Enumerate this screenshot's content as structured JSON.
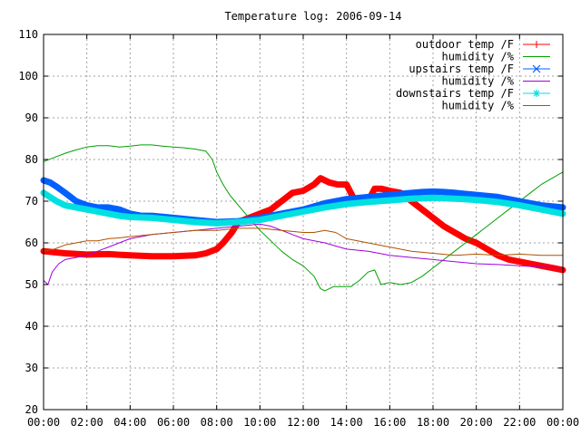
{
  "chart_data": {
    "type": "line",
    "title": "Temperature log: 2006-09-14",
    "xlabel": "",
    "ylabel": "",
    "xlim": [
      0,
      24
    ],
    "ylim": [
      20,
      110
    ],
    "x_tick_labels": [
      "00:00",
      "02:00",
      "04:00",
      "06:00",
      "08:00",
      "10:00",
      "12:00",
      "14:00",
      "16:00",
      "18:00",
      "20:00",
      "22:00",
      "00:00"
    ],
    "x_tick_values": [
      0,
      2,
      4,
      6,
      8,
      10,
      12,
      14,
      16,
      18,
      20,
      22,
      24
    ],
    "y_ticks": [
      20,
      30,
      40,
      50,
      60,
      70,
      80,
      90,
      100,
      110
    ],
    "grid": true,
    "legend_position": "top-right",
    "series": [
      {
        "name": "outdoor temp /F",
        "color": "#ff0000",
        "marker": "plus",
        "thick": true,
        "x": [
          0,
          1,
          2,
          3,
          4,
          5,
          6,
          7,
          7.5,
          8,
          8.3,
          8.7,
          9,
          9.5,
          10,
          10.5,
          11,
          11.5,
          12,
          12.5,
          12.8,
          13.2,
          13.6,
          14,
          14.3,
          14.6,
          15,
          15.3,
          15.6,
          16,
          16.5,
          17,
          17.5,
          18,
          18.5,
          19,
          19.5,
          20,
          20.5,
          21,
          21.5,
          22,
          22.5,
          23,
          23.5,
          24
        ],
        "y": [
          58,
          57.5,
          57.2,
          57.3,
          57,
          56.8,
          56.8,
          57,
          57.5,
          58.5,
          60,
          62.5,
          65,
          66,
          67,
          68,
          70,
          72,
          72.5,
          74,
          75.5,
          74.5,
          74,
          74,
          71,
          70,
          70,
          73,
          73,
          72.5,
          72,
          70,
          68,
          66,
          64,
          62.5,
          61,
          60,
          58.5,
          57,
          56,
          55.5,
          55,
          54.5,
          54,
          53.5
        ]
      },
      {
        "name": "humidity /%",
        "color": "#00a000",
        "marker": "none",
        "thick": false,
        "x": [
          0,
          0.5,
          1,
          1.5,
          2,
          2.5,
          3,
          3.5,
          4,
          4.5,
          5,
          5.5,
          6,
          6.5,
          7,
          7.5,
          7.8,
          8,
          8.3,
          8.6,
          9,
          9.5,
          10,
          10.5,
          11,
          11.5,
          12,
          12.5,
          12.8,
          13,
          13.4,
          13.8,
          14.2,
          14.6,
          15,
          15.3,
          15.6,
          16,
          16.5,
          17,
          17.5,
          18,
          18.5,
          19,
          19.5,
          20,
          20.5,
          21,
          21.5,
          22,
          22.5,
          23,
          23.5,
          24
        ],
        "y": [
          79.5,
          80.5,
          81.5,
          82.3,
          83,
          83.3,
          83.3,
          83,
          83.2,
          83.5,
          83.5,
          83.2,
          83,
          82.8,
          82.5,
          82,
          80,
          77,
          74,
          71.5,
          69,
          66,
          63,
          60.5,
          58,
          56,
          54.5,
          52,
          49,
          48.5,
          49.5,
          49.5,
          49.5,
          51,
          53,
          53.5,
          50,
          50.5,
          50,
          50.5,
          52,
          54,
          56,
          58,
          60,
          62,
          64,
          66,
          68,
          70,
          72,
          74,
          75.5,
          77
        ]
      },
      {
        "name": "upstairs temp /F",
        "color": "#0060ff",
        "marker": "cross",
        "thick": true,
        "x": [
          0,
          0.3,
          0.6,
          1,
          1.5,
          2,
          2.5,
          3,
          3.5,
          4,
          4.5,
          5,
          6,
          7,
          8,
          9,
          10,
          11,
          12,
          13,
          14,
          15,
          16,
          17,
          17.5,
          18,
          18.5,
          19,
          20,
          21,
          22,
          23,
          24
        ],
        "y": [
          75,
          74.5,
          73.5,
          72,
          70,
          69,
          68.5,
          68.5,
          68,
          67,
          66.5,
          66.5,
          66,
          65.5,
          65,
          65.2,
          66,
          67,
          68,
          69.5,
          70.5,
          71,
          71.5,
          72,
          72.2,
          72.3,
          72.2,
          72,
          71.5,
          71,
          70,
          69,
          68.5
        ]
      },
      {
        "name": "humidity /%",
        "color": "#a000e0",
        "marker": "none",
        "thick": false,
        "x": [
          0,
          0.2,
          0.4,
          0.7,
          1,
          1.5,
          2,
          2.5,
          3,
          3.5,
          4,
          4.5,
          5,
          6,
          7,
          8,
          9,
          10,
          10.5,
          11,
          11.5,
          12,
          13,
          14,
          15,
          16,
          17,
          18,
          19,
          20,
          21,
          22,
          23,
          24
        ],
        "y": [
          51,
          50,
          53,
          55,
          56,
          56.5,
          57,
          58,
          59,
          60,
          61,
          61.5,
          62,
          62.5,
          63,
          63.5,
          64,
          64.5,
          64,
          63,
          62,
          61,
          60,
          58.5,
          58,
          57,
          56.5,
          56,
          55.5,
          55,
          54.8,
          54.5,
          54.2,
          54
        ]
      },
      {
        "name": "downstairs temp /F",
        "color": "#00e0e0",
        "marker": "star",
        "thick": true,
        "x": [
          0,
          0.3,
          0.6,
          1,
          1.5,
          2,
          2.5,
          3,
          3.5,
          4,
          5,
          6,
          7,
          8,
          9,
          10,
          11,
          12,
          13,
          14,
          15,
          16,
          17,
          18,
          19,
          20,
          21,
          22,
          23,
          24
        ],
        "y": [
          72,
          71,
          70,
          69,
          68.5,
          68,
          67.5,
          67,
          66.5,
          66.2,
          66,
          65.5,
          65,
          64.7,
          65,
          65.5,
          66.5,
          67.5,
          68.5,
          69.3,
          69.8,
          70.2,
          70.6,
          70.8,
          70.6,
          70.3,
          69.8,
          69,
          68,
          67
        ]
      },
      {
        "name": "humidity /%",
        "color": "#b05000",
        "marker": "none",
        "thick": false,
        "x": [
          0,
          0.5,
          1,
          1.5,
          2,
          2.5,
          3,
          3.5,
          4,
          5,
          6,
          7,
          8,
          9,
          10,
          11,
          12,
          12.5,
          13,
          13.5,
          14,
          15,
          16,
          17,
          18,
          19,
          20,
          21,
          22,
          23,
          24
        ],
        "y": [
          58,
          58.5,
          59.5,
          60,
          60.5,
          60.5,
          61,
          61.2,
          61.5,
          62,
          62.5,
          63,
          63,
          63.5,
          63.5,
          63,
          62.5,
          62.5,
          63,
          62.5,
          61,
          60,
          59,
          58,
          57.5,
          57,
          57.3,
          57,
          57.3,
          57,
          57
        ]
      }
    ]
  }
}
